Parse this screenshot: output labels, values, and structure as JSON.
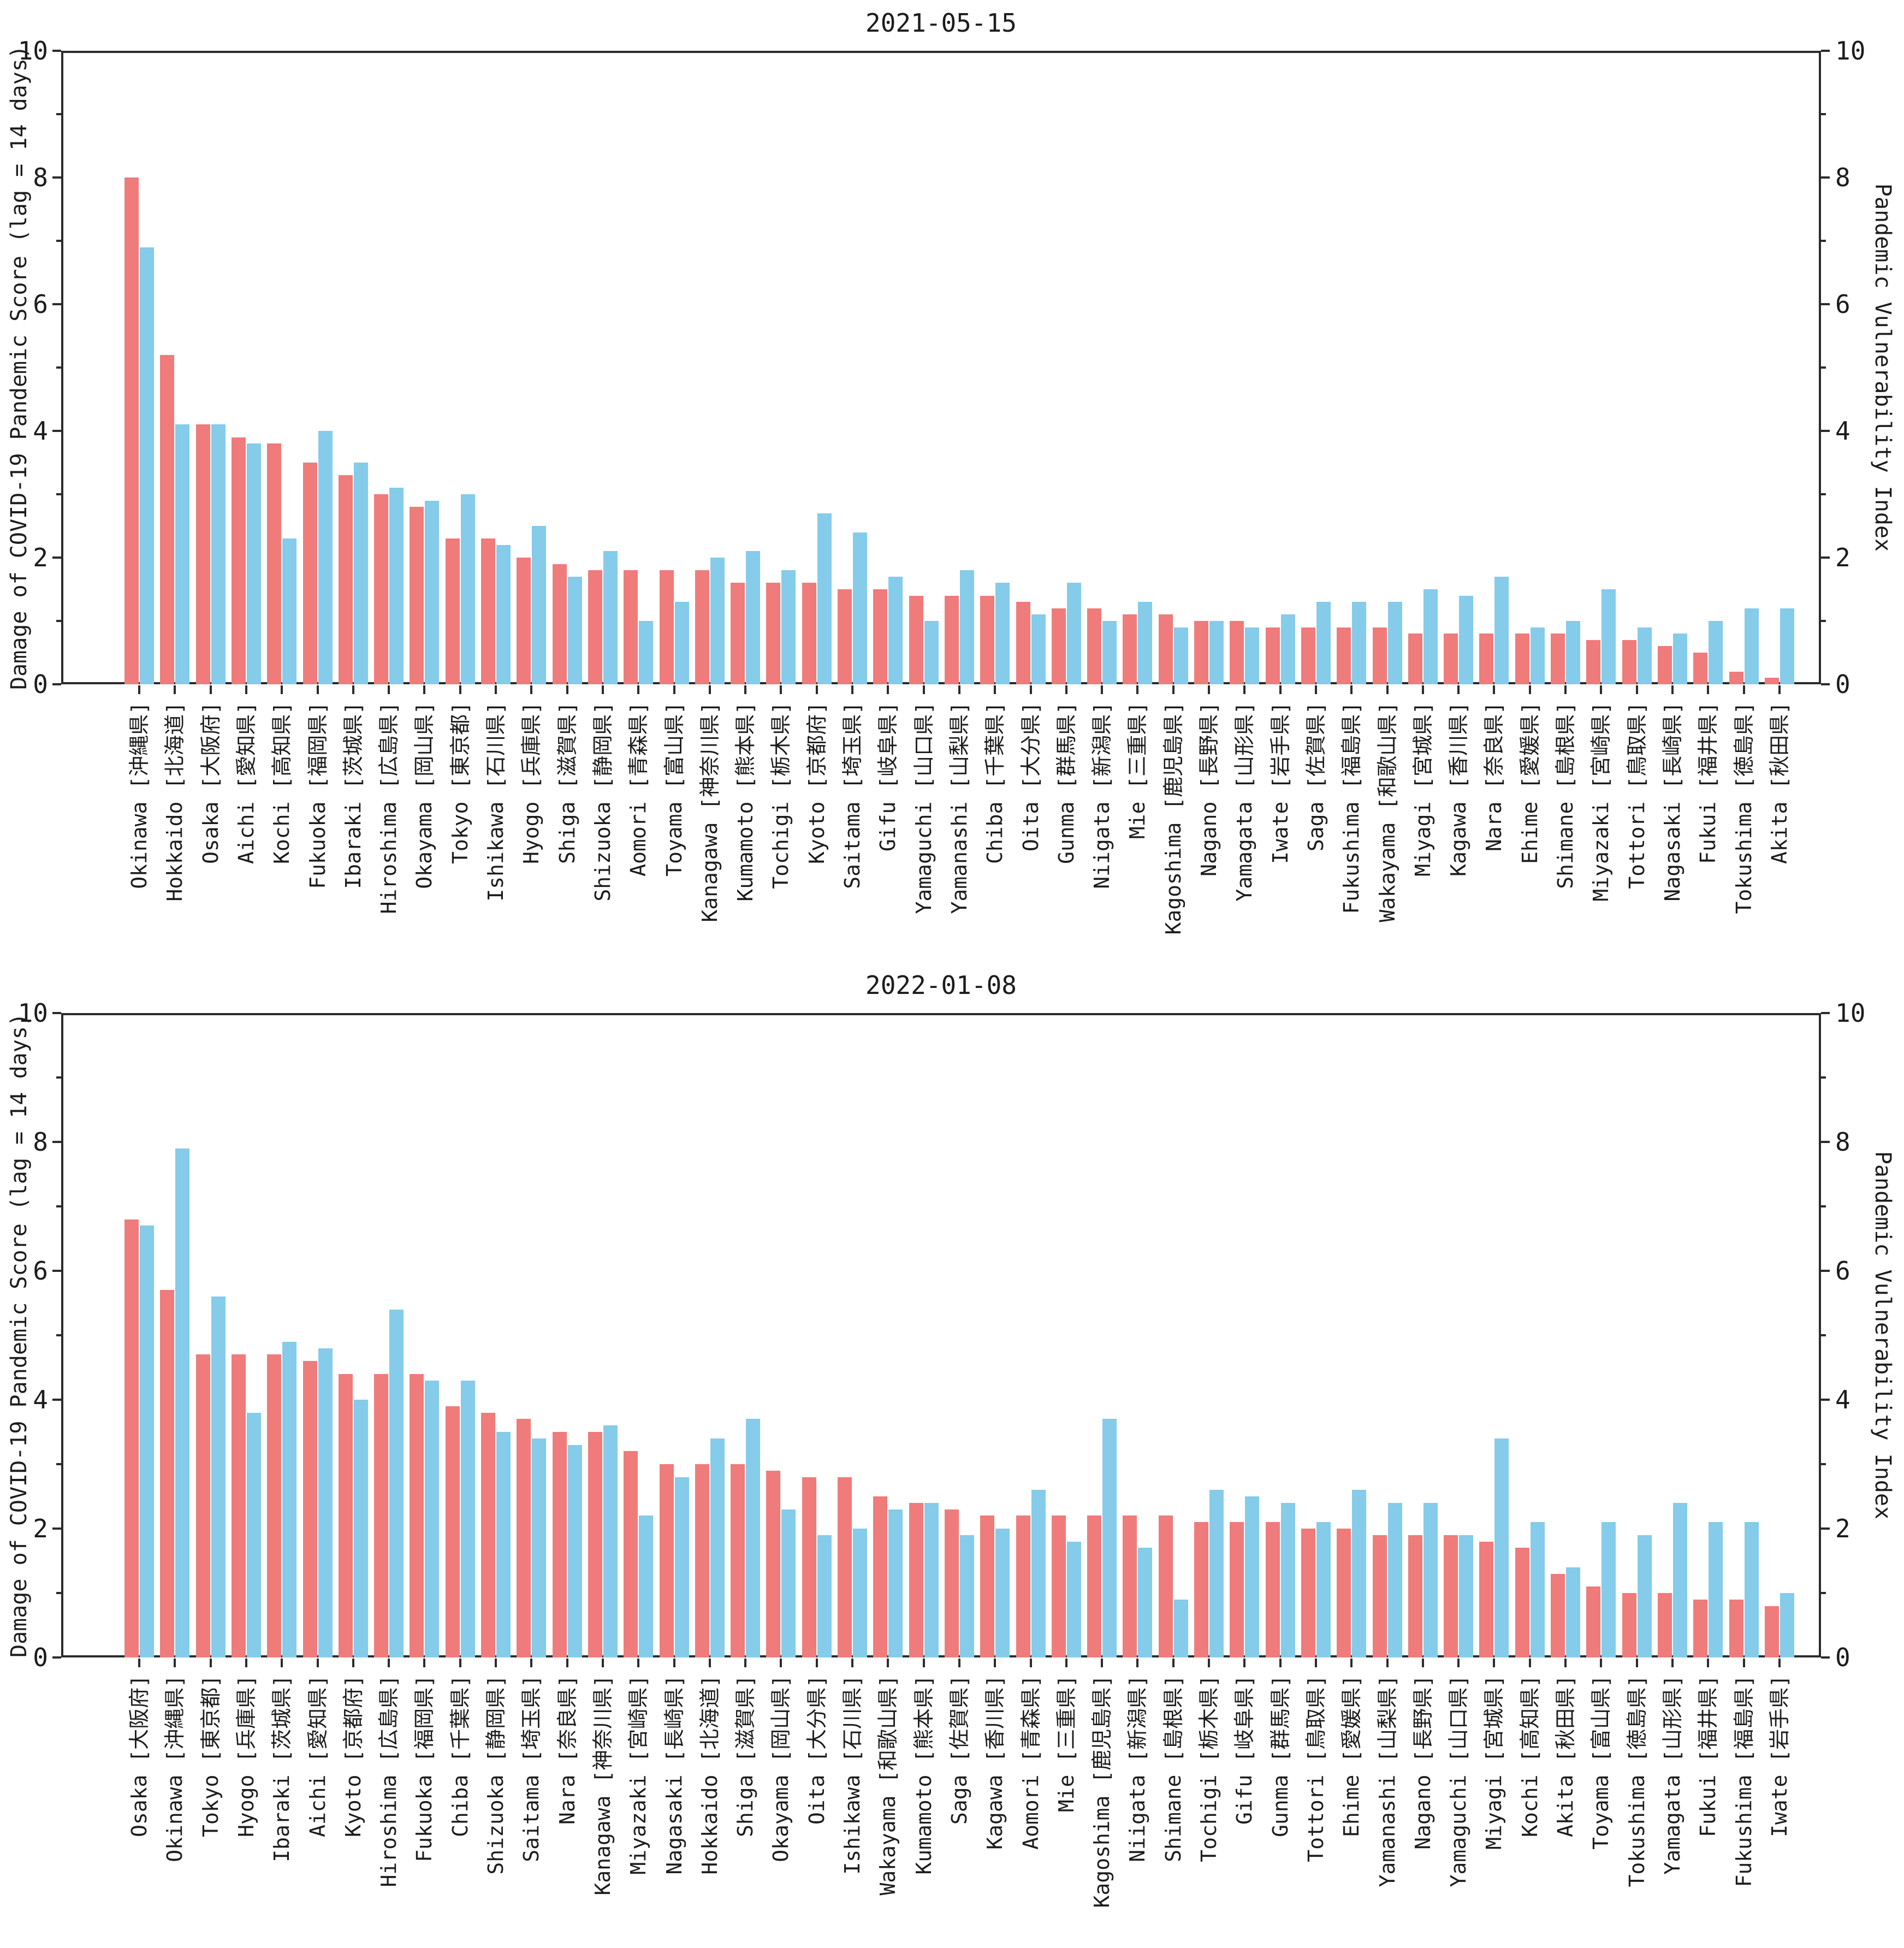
{
  "figure": {
    "background": "#ffffff",
    "axis_color": "#2b2b2b",
    "damage_color": "#ef7b7b",
    "pvi_color": "#85cbea"
  },
  "chart_data": [
    {
      "type": "bar",
      "title": "2021-05-15",
      "ylabel_left": "Damage of COVID-19 Pandemic Score (lag = 14 days)",
      "ylabel_right": "Pandemic Vulnerability Index",
      "ylim": [
        0,
        10
      ],
      "yticks": [
        0,
        2,
        4,
        6,
        8,
        10
      ],
      "grid": false,
      "legend": "none",
      "categories": [
        "Okinawa [沖縄県]",
        "Hokkaido [北海道]",
        "Osaka [大阪府]",
        "Aichi [愛知県]",
        "Kochi [高知県]",
        "Fukuoka [福岡県]",
        "Ibaraki [茨城県]",
        "Hiroshima [広島県]",
        "Okayama [岡山県]",
        "Tokyo [東京都]",
        "Ishikawa [石川県]",
        "Hyogo [兵庫県]",
        "Shiga [滋賀県]",
        "Shizuoka [静岡県]",
        "Aomori [青森県]",
        "Toyama [富山県]",
        "Kanagawa [神奈川県]",
        "Kumamoto [熊本県]",
        "Tochigi [栃木県]",
        "Kyoto [京都府]",
        "Saitama [埼玉県]",
        "Gifu [岐阜県]",
        "Yamaguchi [山口県]",
        "Yamanashi [山梨県]",
        "Chiba [千葉県]",
        "Oita [大分県]",
        "Gunma [群馬県]",
        "Niigata [新潟県]",
        "Mie [三重県]",
        "Kagoshima [鹿児島県]",
        "Nagano [長野県]",
        "Yamagata [山形県]",
        "Iwate [岩手県]",
        "Saga [佐賀県]",
        "Fukushima [福島県]",
        "Wakayama [和歌山県]",
        "Miyagi [宮城県]",
        "Kagawa [香川県]",
        "Nara [奈良県]",
        "Ehime [愛媛県]",
        "Shimane [島根県]",
        "Miyazaki [宮崎県]",
        "Tottori [鳥取県]",
        "Nagasaki [長崎県]",
        "Fukui [福井県]",
        "Tokushima [徳島県]",
        "Akita [秋田県]"
      ],
      "series": [
        {
          "name": "Damage of COVID-19 Pandemic Score (lag = 14 days)",
          "color": "#ef7b7b",
          "values": [
            8.0,
            5.2,
            4.1,
            3.9,
            3.8,
            3.5,
            3.3,
            3.0,
            2.8,
            2.3,
            2.3,
            2.0,
            1.9,
            1.8,
            1.8,
            1.8,
            1.8,
            1.6,
            1.6,
            1.6,
            1.5,
            1.5,
            1.4,
            1.4,
            1.4,
            1.3,
            1.2,
            1.2,
            1.1,
            1.1,
            1.0,
            1.0,
            0.9,
            0.9,
            0.9,
            0.9,
            0.8,
            0.8,
            0.8,
            0.8,
            0.8,
            0.7,
            0.7,
            0.6,
            0.5,
            0.2,
            0.1
          ]
        },
        {
          "name": "Pandemic Vulnerability Index",
          "color": "#85cbea",
          "values": [
            6.9,
            4.1,
            4.1,
            3.8,
            2.3,
            4.0,
            3.5,
            3.1,
            2.9,
            3.0,
            2.2,
            2.5,
            1.7,
            2.1,
            1.0,
            1.3,
            2.0,
            2.1,
            1.8,
            2.7,
            2.4,
            1.7,
            1.0,
            1.8,
            1.6,
            1.1,
            1.6,
            1.0,
            1.3,
            0.9,
            1.0,
            0.9,
            1.1,
            1.3,
            1.3,
            1.3,
            1.5,
            1.4,
            1.7,
            0.9,
            1.0,
            1.5,
            0.9,
            0.8,
            1.0,
            1.2,
            1.2
          ]
        }
      ]
    },
    {
      "type": "bar",
      "title": "2022-01-08",
      "ylabel_left": "Damage of COVID-19 Pandemic Score (lag = 14 days)",
      "ylabel_right": "Pandemic Vulnerability Index",
      "ylim": [
        0,
        10
      ],
      "yticks": [
        0,
        2,
        4,
        6,
        8,
        10
      ],
      "grid": false,
      "legend": "none",
      "categories": [
        "Osaka [大阪府]",
        "Okinawa [沖縄県]",
        "Tokyo [東京都]",
        "Hyogo [兵庫県]",
        "Ibaraki [茨城県]",
        "Aichi [愛知県]",
        "Kyoto [京都府]",
        "Hiroshima [広島県]",
        "Fukuoka [福岡県]",
        "Chiba [千葉県]",
        "Shizuoka [静岡県]",
        "Saitama [埼玉県]",
        "Nara [奈良県]",
        "Kanagawa [神奈川県]",
        "Miyazaki [宮崎県]",
        "Nagasaki [長崎県]",
        "Hokkaido [北海道]",
        "Shiga [滋賀県]",
        "Okayama [岡山県]",
        "Oita [大分県]",
        "Ishikawa [石川県]",
        "Wakayama [和歌山県]",
        "Kumamoto [熊本県]",
        "Saga [佐賀県]",
        "Kagawa [香川県]",
        "Aomori [青森県]",
        "Mie [三重県]",
        "Kagoshima [鹿児島県]",
        "Niigata [新潟県]",
        "Shimane [島根県]",
        "Tochigi [栃木県]",
        "Gifu [岐阜県]",
        "Gunma [群馬県]",
        "Tottori [鳥取県]",
        "Ehime [愛媛県]",
        "Yamanashi [山梨県]",
        "Nagano [長野県]",
        "Yamaguchi [山口県]",
        "Miyagi [宮城県]",
        "Kochi [高知県]",
        "Akita [秋田県]",
        "Toyama [富山県]",
        "Tokushima [徳島県]",
        "Yamagata [山形県]",
        "Fukui [福井県]",
        "Fukushima [福島県]",
        "Iwate [岩手県]"
      ],
      "series": [
        {
          "name": "Damage of COVID-19 Pandemic Score (lag = 14 days)",
          "color": "#ef7b7b",
          "values": [
            6.8,
            5.7,
            4.7,
            4.7,
            4.7,
            4.6,
            4.4,
            4.4,
            4.4,
            3.9,
            3.8,
            3.7,
            3.5,
            3.5,
            3.2,
            3.0,
            3.0,
            3.0,
            2.9,
            2.8,
            2.8,
            2.5,
            2.4,
            2.3,
            2.2,
            2.2,
            2.2,
            2.2,
            2.2,
            2.2,
            2.1,
            2.1,
            2.1,
            2.0,
            2.0,
            1.9,
            1.9,
            1.9,
            1.8,
            1.7,
            1.3,
            1.1,
            1.0,
            1.0,
            0.9,
            0.9,
            0.8
          ]
        },
        {
          "name": "Pandemic Vulnerability Index",
          "color": "#85cbea",
          "values": [
            6.7,
            7.9,
            5.6,
            3.8,
            4.9,
            4.8,
            4.0,
            5.4,
            4.3,
            4.3,
            3.5,
            3.4,
            3.3,
            3.6,
            2.2,
            2.8,
            3.4,
            3.7,
            2.3,
            1.9,
            2.0,
            2.3,
            2.4,
            1.9,
            2.0,
            2.6,
            1.8,
            3.7,
            1.7,
            0.9,
            2.6,
            2.5,
            2.4,
            2.1,
            2.6,
            2.4,
            2.4,
            1.9,
            3.4,
            2.1,
            1.4,
            2.1,
            1.9,
            2.4,
            2.1,
            2.1,
            1.0
          ]
        }
      ]
    }
  ]
}
